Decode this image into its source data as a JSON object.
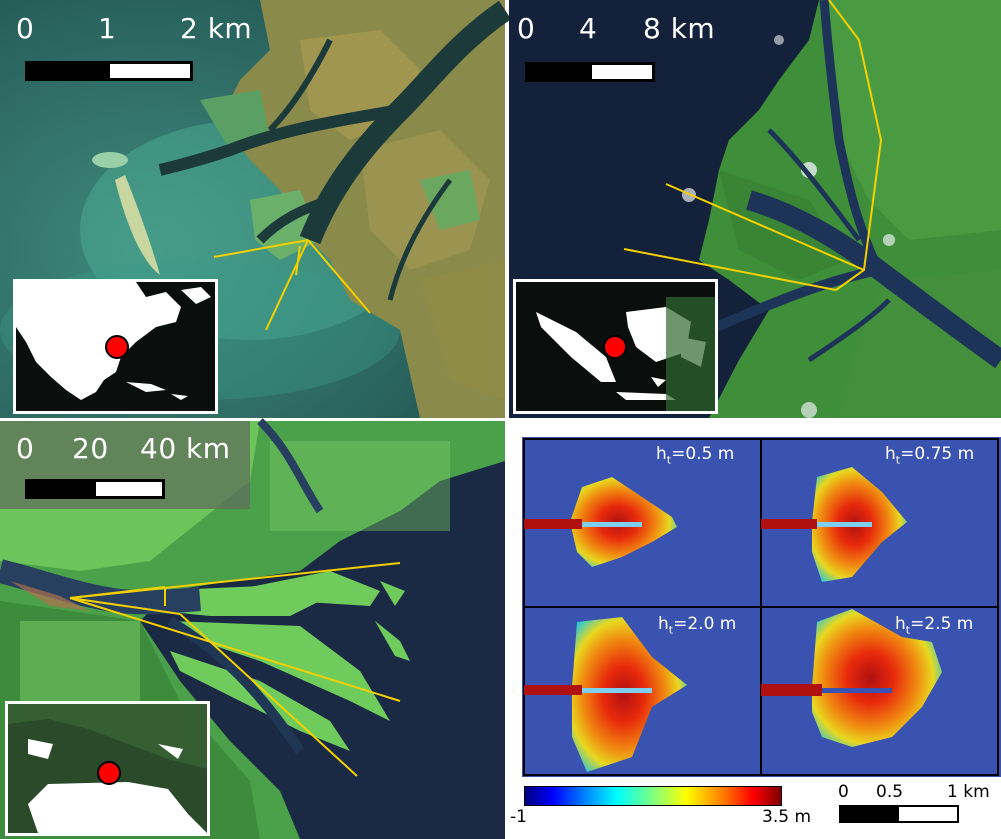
{
  "panels": {
    "top_left": {
      "scale_labels": [
        "0",
        "1",
        "2 km"
      ],
      "inset_marker_color": "#ff0000"
    },
    "top_right": {
      "scale_labels": [
        "0",
        "4",
        "8 km"
      ],
      "inset_marker_color": "#ff0000"
    },
    "bottom_left": {
      "scale_labels": [
        "0",
        "20",
        "40 km"
      ],
      "inset_marker_color": "#ff0000"
    },
    "simulation": {
      "labels": [
        {
          "base": "h",
          "sub": "t",
          "rest": "=0.5 m"
        },
        {
          "base": "h",
          "sub": "t",
          "rest": "=0.75 m"
        },
        {
          "base": "h",
          "sub": "t",
          "rest": "=2.0 m"
        },
        {
          "base": "h",
          "sub": "t",
          "rest": "=2.5 m"
        }
      ],
      "colorbar": {
        "min_label": "-1",
        "max_label": "3.5 m",
        "colormap": "jet"
      },
      "scale_labels": [
        "0",
        "0.5",
        "1 km"
      ]
    }
  },
  "colors": {
    "annotation_line": "#f5d000",
    "sim_background": "#3a52b0"
  }
}
